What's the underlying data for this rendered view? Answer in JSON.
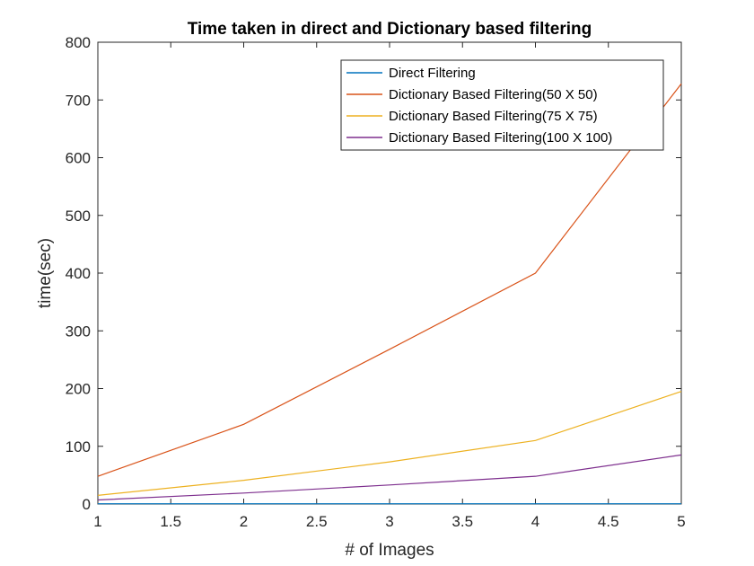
{
  "chart_data": {
    "type": "line",
    "title": "Time taken in direct and Dictionary based filtering",
    "xlabel": "# of Images",
    "ylabel": "time(sec)",
    "x": [
      1,
      2,
      3,
      4,
      5
    ],
    "xlim": [
      1,
      5
    ],
    "ylim": [
      0,
      800
    ],
    "xticks": [
      "1",
      "1.5",
      "2",
      "2.5",
      "3",
      "3.5",
      "4",
      "4.5",
      "5"
    ],
    "yticks": [
      "0",
      "100",
      "200",
      "300",
      "400",
      "500",
      "600",
      "700",
      "800"
    ],
    "grid": false,
    "legend_position": "top-right",
    "series": [
      {
        "name": "Direct Filtering",
        "values": [
          0.5,
          0.5,
          0.5,
          0.5,
          0.5
        ],
        "color": "#0072BD"
      },
      {
        "name": "Dictionary Based Filtering(50 X 50)",
        "values": [
          48,
          138,
          268,
          400,
          728
        ],
        "color": "#D95319"
      },
      {
        "name": "Dictionary Based Filtering(75 X 75)",
        "values": [
          15,
          41,
          73,
          110,
          195
        ],
        "color": "#EDB120"
      },
      {
        "name": "Dictionary Based Filtering(100 X 100)",
        "values": [
          7,
          19,
          33,
          48,
          85
        ],
        "color": "#7E2F8E"
      }
    ]
  }
}
